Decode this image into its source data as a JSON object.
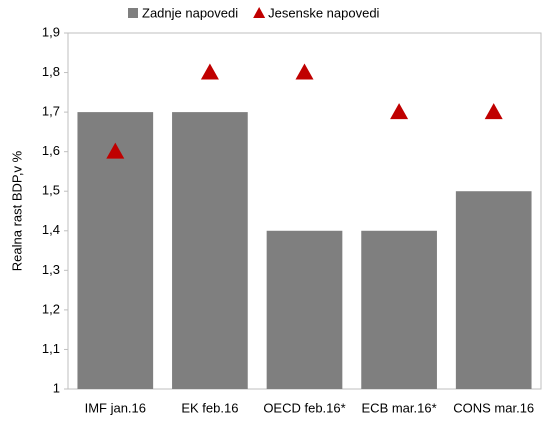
{
  "chart_data": {
    "type": "bar",
    "ylabel": "Realna rast BDP,v %",
    "categories": [
      "IMF jan.16",
      "EK feb.16",
      "OECD feb.16*",
      "ECB mar.16*",
      "CONS mar.16"
    ],
    "series": [
      {
        "name": "Zadnje napovedi",
        "type": "bar",
        "color": "#7f7f7f",
        "values": [
          1.7,
          1.7,
          1.4,
          1.4,
          1.5
        ]
      },
      {
        "name": "Jesenske napovedi",
        "type": "scatter",
        "marker": "triangle",
        "color": "#c00000",
        "values": [
          1.6,
          1.8,
          1.8,
          1.7,
          1.7
        ]
      }
    ],
    "ylim": [
      1,
      1.9
    ],
    "yticks": [
      1,
      {
        "value": 1.1,
        "label": "1,1"
      },
      {
        "value": 1.2,
        "label": "1,2"
      },
      {
        "value": 1.3,
        "label": "1,3"
      },
      {
        "value": 1.4,
        "label": "1,4"
      },
      {
        "value": 1.5,
        "label": "1,5"
      },
      {
        "value": 1.6,
        "label": "1,6"
      },
      {
        "value": 1.7,
        "label": "1,7"
      },
      {
        "value": 1.8,
        "label": "1,8"
      },
      {
        "value": 1.9,
        "label": "1,9"
      }
    ],
    "legend": "top"
  }
}
